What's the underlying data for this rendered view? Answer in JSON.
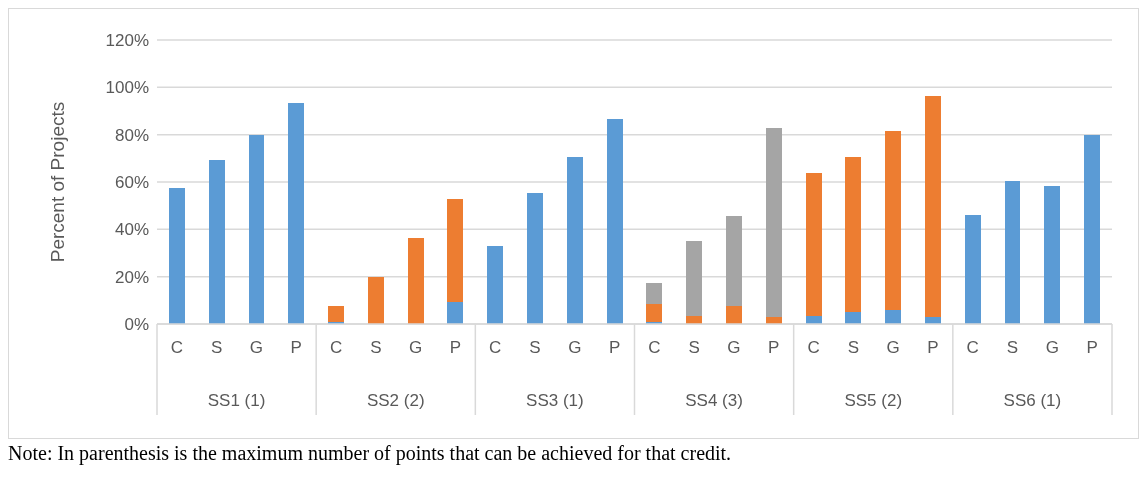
{
  "chart_data": {
    "type": "bar",
    "stacked": true,
    "ylabel": "Percent of Projects",
    "categories": [
      "C",
      "S",
      "G",
      "P",
      "C",
      "S",
      "G",
      "P",
      "C",
      "S",
      "G",
      "P",
      "C",
      "S",
      "G",
      "P",
      "C",
      "S",
      "G",
      "P",
      "C",
      "S",
      "G",
      "P"
    ],
    "series": [
      {
        "color": "#5b9bd5",
        "values": [
          57.5,
          69.5,
          80,
          93.5,
          1,
          0,
          0,
          9.5,
          33,
          55.5,
          70.5,
          86.5,
          1,
          0,
          0,
          0,
          3.5,
          5,
          6,
          3,
          46,
          60.5,
          58.5,
          80
        ]
      },
      {
        "color": "#ed7d31",
        "values": [
          0,
          0,
          0,
          0,
          6.5,
          20,
          36.5,
          43.5,
          0,
          0,
          0,
          0,
          7.5,
          3.5,
          7.5,
          3,
          60.5,
          65.5,
          75.5,
          93.5,
          0,
          0,
          0,
          0
        ]
      },
      {
        "color": "#a5a5a5",
        "values": [
          0,
          0,
          0,
          0,
          0,
          0,
          0,
          0,
          0,
          0,
          0,
          0,
          9,
          31.5,
          38,
          80,
          0,
          0,
          0,
          0,
          0,
          0,
          0,
          0
        ]
      }
    ],
    "ylim": [
      0,
      120
    ],
    "yticks": [
      {
        "value": 0,
        "label": "0%"
      },
      {
        "value": 20,
        "label": "20%"
      },
      {
        "value": 40,
        "label": "40%"
      },
      {
        "value": 60,
        "label": "60%"
      },
      {
        "value": 80,
        "label": "80%"
      },
      {
        "value": 100,
        "label": "100%"
      },
      {
        "value": 120,
        "label": "120%"
      }
    ],
    "grid": "y",
    "annotations": [
      "SS1 (1)",
      "SS2 (2)",
      "SS3 (1)",
      "SS4 (3)",
      "SS5 (2)",
      "SS6 (1)",
      "Note: In parenthesis is the maximum number of points that can be achieved for that credit."
    ]
  }
}
